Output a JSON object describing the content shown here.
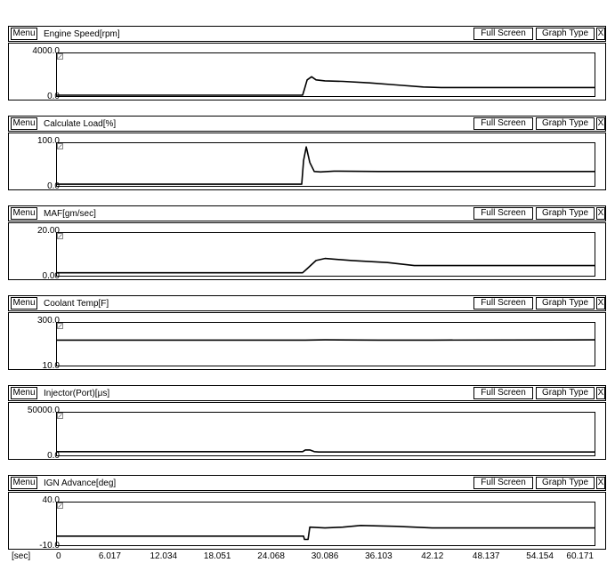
{
  "toolbar": {
    "menu_label": "Menu",
    "full_screen_label": "Full Screen",
    "graph_type_label": "Graph Type",
    "close_label": "X"
  },
  "x_axis": {
    "unit_label": "[sec]",
    "tick_labels": [
      "0",
      "6.017",
      "12.034",
      "18.051",
      "24.068",
      "30.086",
      "36.103",
      "42.12",
      "48.137",
      "54.154",
      "60.171"
    ]
  },
  "panels": [
    {
      "title": "Engine Speed[rpm]",
      "y_max_label": "4000.0",
      "y_min_label": "0.0"
    },
    {
      "title": "Calculate Load[%]",
      "y_max_label": "100.0",
      "y_min_label": "0.0"
    },
    {
      "title": "MAF[gm/sec]",
      "y_max_label": "20.00",
      "y_min_label": "0.00"
    },
    {
      "title": "Coolant Temp[F]",
      "y_max_label": "300.0",
      "y_min_label": "10.0"
    },
    {
      "title": "Injector(Port)[μs]",
      "y_max_label": "50000.0",
      "y_min_label": "0.0"
    },
    {
      "title": "IGN Advance[deg]",
      "y_max_label": "40.0",
      "y_min_label": "-10.0"
    }
  ],
  "chart_data": [
    {
      "type": "line",
      "title": "Engine Speed[rpm]",
      "ylim": [
        0,
        4000
      ],
      "xlim": [
        0,
        60.171
      ],
      "series": [
        {
          "x": [
            0,
            27.5,
            27.7,
            28.0,
            28.5,
            29.0,
            30.0,
            32.0,
            35.0,
            38.0,
            41.0,
            43.0,
            60.171
          ],
          "values": [
            0,
            0,
            600,
            1500,
            1800,
            1500,
            1400,
            1350,
            1200,
            1000,
            800,
            750,
            750
          ]
        }
      ]
    },
    {
      "type": "line",
      "title": "Calculate Load[%]",
      "ylim": [
        0,
        100
      ],
      "xlim": [
        0,
        60.171
      ],
      "series": [
        {
          "x": [
            0,
            27.4,
            27.6,
            27.9,
            28.3,
            28.8,
            29.5,
            31.0,
            36.0,
            42.0,
            60.171
          ],
          "values": [
            2,
            2,
            60,
            93,
            55,
            33,
            32,
            34,
            33,
            33,
            33
          ]
        }
      ]
    },
    {
      "type": "line",
      "title": "MAF[gm/sec]",
      "ylim": [
        0,
        20
      ],
      "xlim": [
        0,
        60.171
      ],
      "series": [
        {
          "x": [
            0,
            27.5,
            28.0,
            29.0,
            30.0,
            33.0,
            37.0,
            40.0,
            60.171
          ],
          "values": [
            1,
            1,
            3,
            7,
            8,
            7,
            6,
            4.5,
            4.5
          ]
        }
      ]
    },
    {
      "type": "line",
      "title": "Coolant Temp[F]",
      "ylim": [
        10,
        300
      ],
      "xlim": [
        0,
        60.171
      ],
      "series": [
        {
          "x": [
            0,
            27.8,
            30.0,
            36.0,
            42.0,
            60.171
          ],
          "values": [
            184,
            184,
            186,
            184,
            184,
            186
          ]
        }
      ]
    },
    {
      "type": "line",
      "title": "Injector(Port)[μs]",
      "ylim": [
        0,
        50000
      ],
      "xlim": [
        0,
        60.171
      ],
      "series": [
        {
          "x": [
            0,
            27.5,
            27.8,
            28.3,
            28.8,
            29.3,
            60.171
          ],
          "values": [
            3500,
            3500,
            5500,
            5500,
            3500,
            3000,
            3000
          ]
        }
      ]
    },
    {
      "type": "line",
      "title": "IGN Advance[deg]",
      "ylim": [
        -10,
        40
      ],
      "xlim": [
        0,
        60.171
      ],
      "series": [
        {
          "x": [
            0,
            27.6,
            27.7,
            28.1,
            28.3,
            30.0,
            32.0,
            34.0,
            38.0,
            42.0,
            48.0,
            60.171
          ],
          "values": [
            0,
            0,
            -4,
            -4,
            11,
            10,
            11,
            13,
            12,
            10,
            10,
            10
          ]
        }
      ]
    }
  ]
}
